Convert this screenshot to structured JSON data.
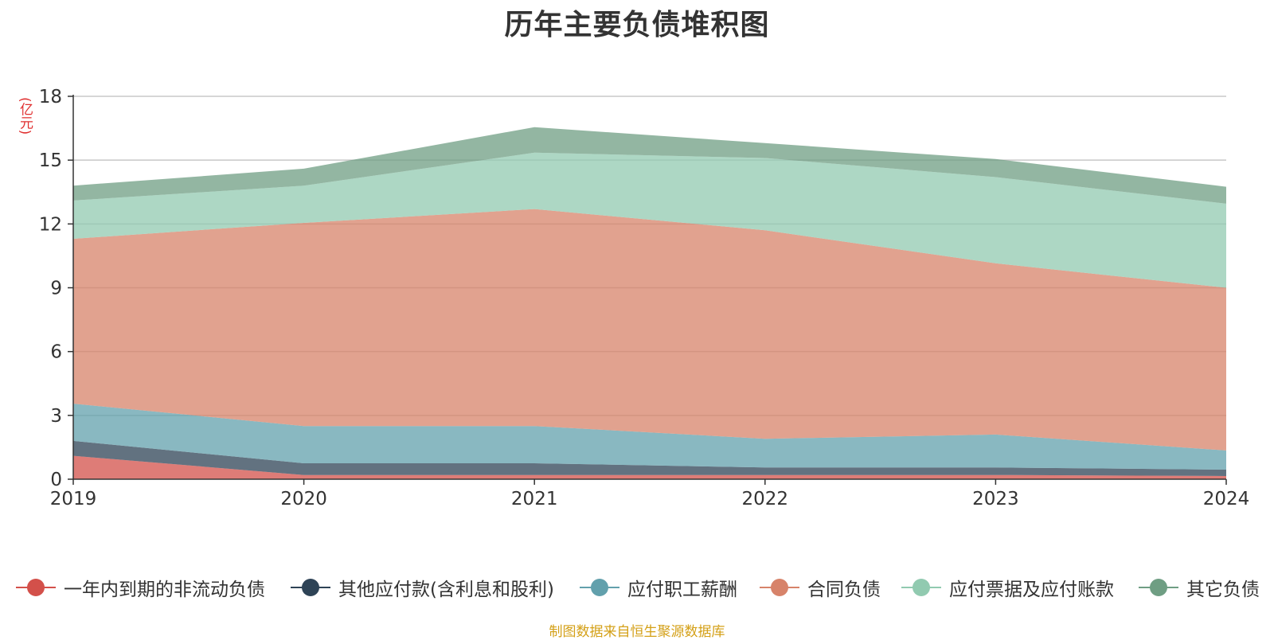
{
  "chart_data": {
    "type": "area",
    "stacked": true,
    "title": "历年主要负债堆积图",
    "ylabel": "(亿元)",
    "xlabel": "",
    "ylim": [
      0,
      18
    ],
    "yticks": [
      "0",
      "3",
      "6",
      "9",
      "12",
      "15",
      "18"
    ],
    "categories": [
      "2019",
      "2020",
      "2021",
      "2022",
      "2023",
      "2024"
    ],
    "series": [
      {
        "name": "一年内到期的非流动负债",
        "color": "#d3504a",
        "values": [
          1.1,
          0.2,
          0.2,
          0.2,
          0.2,
          0.15
        ]
      },
      {
        "name": "其他应付款(含利息和股利)",
        "color": "#2e4356",
        "values": [
          0.7,
          0.55,
          0.55,
          0.35,
          0.35,
          0.3
        ]
      },
      {
        "name": "应付职工薪酬",
        "color": "#62a0ac",
        "values": [
          1.75,
          1.75,
          1.75,
          1.35,
          1.55,
          0.9
        ]
      },
      {
        "name": "合同负债",
        "color": "#d7836a",
        "values": [
          7.75,
          9.55,
          10.2,
          9.8,
          8.05,
          7.65
        ]
      },
      {
        "name": "应付票据及应付账款",
        "color": "#91cab0",
        "values": [
          1.8,
          1.75,
          2.65,
          3.4,
          4.05,
          3.95
        ]
      },
      {
        "name": "其它负债",
        "color": "#6f9e83",
        "values": [
          0.7,
          0.8,
          1.2,
          0.7,
          0.85,
          0.8
        ]
      }
    ],
    "legend_position": "bottom",
    "grid": true
  },
  "footer": {
    "source": "制图数据来自恒生聚源数据库"
  }
}
